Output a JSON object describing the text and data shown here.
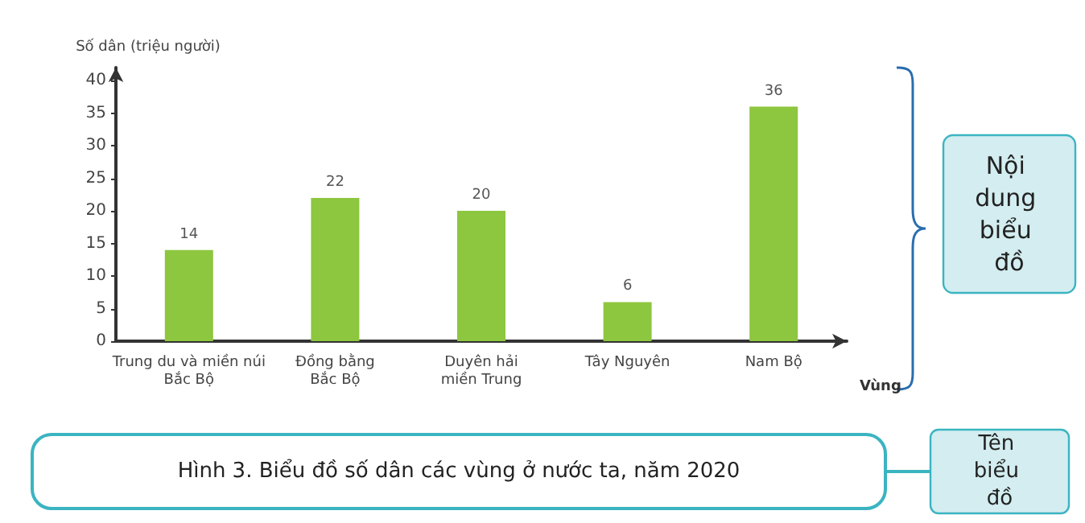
{
  "chart_data": {
    "type": "bar",
    "title": "Hình 3. Biểu đồ số dân các vùng ở nước ta, năm 2020",
    "xlabel": "Vùng",
    "ylabel": "Số dân (triệu người)",
    "categories": [
      "Trung du và miền núi\nBắc Bộ",
      "Đồng bằng\nBắc Bộ",
      "Duyên hải\nmiền Trung",
      "Tây Nguyên",
      "Nam Bộ"
    ],
    "values": [
      14,
      22,
      20,
      6,
      36
    ],
    "color": "#8dc63f",
    "data_labels": true,
    "ylim": [
      0,
      42
    ],
    "yticks": [
      0,
      5,
      10,
      15,
      20,
      25,
      30,
      35,
      40
    ],
    "grid": false,
    "annotations": [
      "Nội dung biểu đồ",
      "Tên biểu đồ"
    ]
  }
}
